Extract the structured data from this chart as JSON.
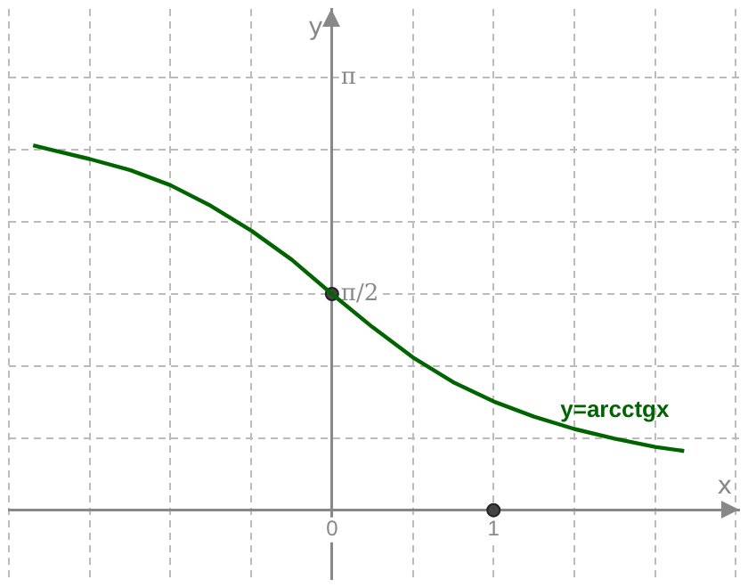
{
  "chart_data": {
    "type": "line",
    "xlabel": "x",
    "ylabel": "y",
    "xlim": [
      -2,
      2.52
    ],
    "ylim": [
      -0.5,
      3.64
    ],
    "xticks": [
      {
        "value": -2,
        "label": null
      },
      {
        "value": -1.5,
        "label": null
      },
      {
        "value": -1,
        "label": null
      },
      {
        "value": -0.5,
        "label": null
      },
      0,
      {
        "value": 0.5,
        "label": null
      },
      1,
      {
        "value": 1.5,
        "label": null
      },
      {
        "value": 2,
        "label": null
      },
      {
        "value": 2.5,
        "label": null
      }
    ],
    "yticks": [
      {
        "value": 0.5236,
        "label": null
      },
      {
        "value": 1.0472,
        "label": null
      },
      {
        "value": 1.5708,
        "label": "π/2"
      },
      {
        "value": 2.0944,
        "label": null
      },
      {
        "value": 2.618,
        "label": null
      },
      {
        "value": 3.1416,
        "label": "π"
      }
    ],
    "grid": true,
    "series": [
      {
        "name": "y=arcctgx",
        "color": "#006400",
        "marker": "none",
        "x": [
          -1.85,
          -1.75,
          -1.5,
          -1.25,
          -1,
          -0.75,
          -0.5,
          -0.25,
          0,
          0.25,
          0.5,
          0.75,
          1,
          1.25,
          1.5,
          1.75,
          2,
          2.18
        ],
        "values": [
          2.65,
          2.62,
          2.55,
          2.47,
          2.36,
          2.21,
          2.03,
          1.82,
          1.57,
          1.33,
          1.11,
          0.93,
          0.79,
          0.68,
          0.59,
          0.52,
          0.46,
          0.43
        ]
      },
      {
        "type": "scatter",
        "color": "#444444",
        "marker": "circle",
        "x": [
          0,
          1
        ],
        "values": [
          1.57,
          0
        ]
      }
    ]
  }
}
